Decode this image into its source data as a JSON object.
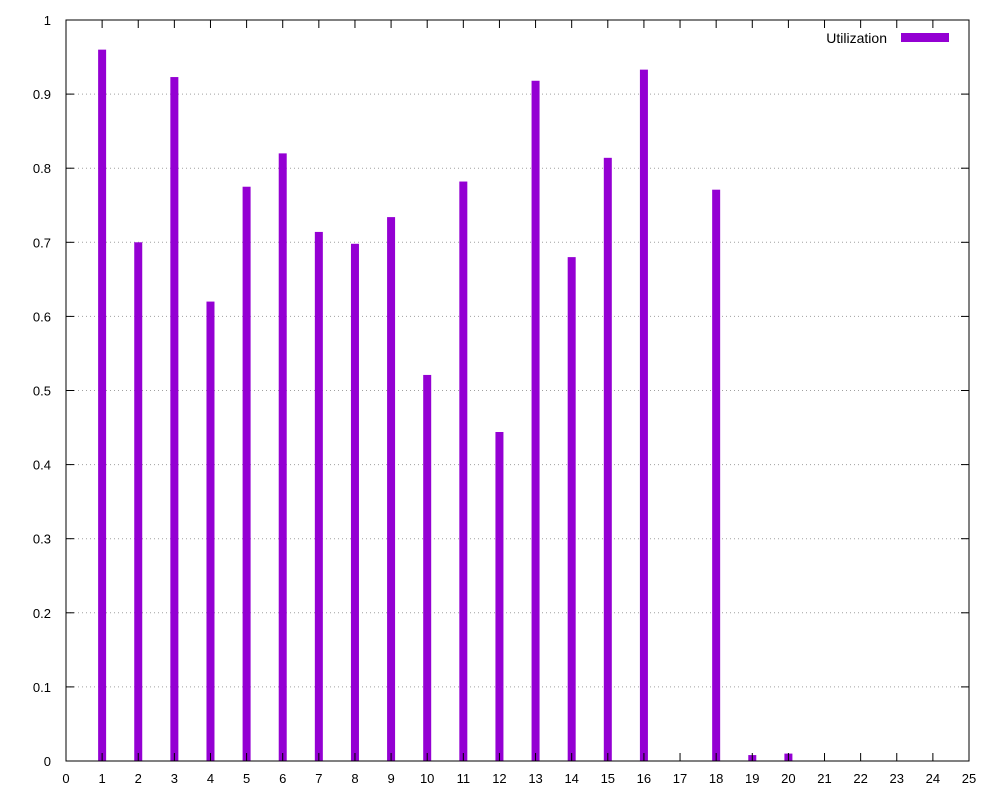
{
  "chart_data": {
    "type": "bar",
    "title": "",
    "xlabel": "",
    "ylabel": "",
    "series": [
      {
        "name": "Utilization",
        "color": "#9400d3",
        "points": [
          {
            "x": 1,
            "y": 0.96
          },
          {
            "x": 2,
            "y": 0.7
          },
          {
            "x": 3,
            "y": 0.923
          },
          {
            "x": 4,
            "y": 0.62
          },
          {
            "x": 5,
            "y": 0.775
          },
          {
            "x": 6,
            "y": 0.82
          },
          {
            "x": 7,
            "y": 0.714
          },
          {
            "x": 8,
            "y": 0.698
          },
          {
            "x": 9,
            "y": 0.734
          },
          {
            "x": 10,
            "y": 0.521
          },
          {
            "x": 11,
            "y": 0.782
          },
          {
            "x": 12,
            "y": 0.444
          },
          {
            "x": 13,
            "y": 0.918
          },
          {
            "x": 14,
            "y": 0.68
          },
          {
            "x": 15,
            "y": 0.814
          },
          {
            "x": 16,
            "y": 0.933
          },
          {
            "x": 18,
            "y": 0.771
          },
          {
            "x": 19,
            "y": 0.008
          },
          {
            "x": 20,
            "y": 0.01
          }
        ]
      }
    ],
    "xlim": [
      0,
      25
    ],
    "ylim": [
      0,
      1
    ],
    "xticks": [
      "0",
      "1",
      "2",
      "3",
      "4",
      "5",
      "6",
      "7",
      "8",
      "9",
      "10",
      "11",
      "12",
      "13",
      "14",
      "15",
      "16",
      "17",
      "18",
      "19",
      "20",
      "21",
      "22",
      "23",
      "24",
      "25"
    ],
    "yticks": [
      "0",
      "0.1",
      "0.2",
      "0.3",
      "0.4",
      "0.5",
      "0.6",
      "0.7",
      "0.8",
      "0.9",
      "1"
    ],
    "grid": "horizontal dotted",
    "legend_position": "top-right",
    "colors": {
      "bar": "#9400d3",
      "grid": "#a0a0a0",
      "axis": "#000000"
    }
  }
}
